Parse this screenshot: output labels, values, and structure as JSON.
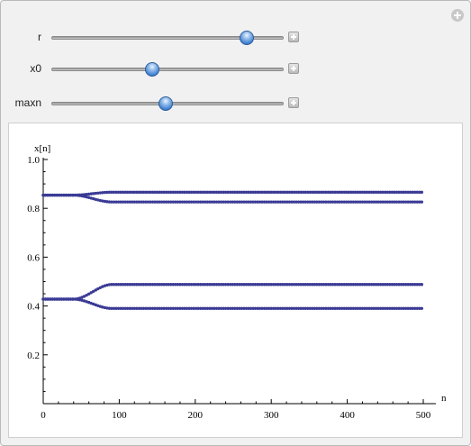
{
  "controls": [
    {
      "label": "r",
      "value_fraction": 0.84
    },
    {
      "label": "x0",
      "value_fraction": 0.44
    },
    {
      "label": "maxn",
      "value_fraction": 0.5
    }
  ],
  "chart_data": {
    "type": "scatter",
    "title": "",
    "xlabel": "n",
    "ylabel": "x[n]",
    "xlim": [
      0,
      500
    ],
    "ylim": [
      0,
      1.0
    ],
    "x_ticks": [
      "0",
      "100",
      "200",
      "300",
      "400",
      "500"
    ],
    "y_ticks": [
      "0.2",
      "0.4",
      "0.6",
      "0.8",
      "1.0"
    ],
    "color": "#3a3a95",
    "series": [
      {
        "values_summary": "orbit of logistic map settling into a 4-cycle",
        "x_range": [
          0,
          500
        ],
        "cycle_values": [
          0.826,
          0.866,
          0.39,
          0.488
        ],
        "initial_values": [
          0.854,
          0.428
        ],
        "transition_end_n": 90
      }
    ]
  }
}
